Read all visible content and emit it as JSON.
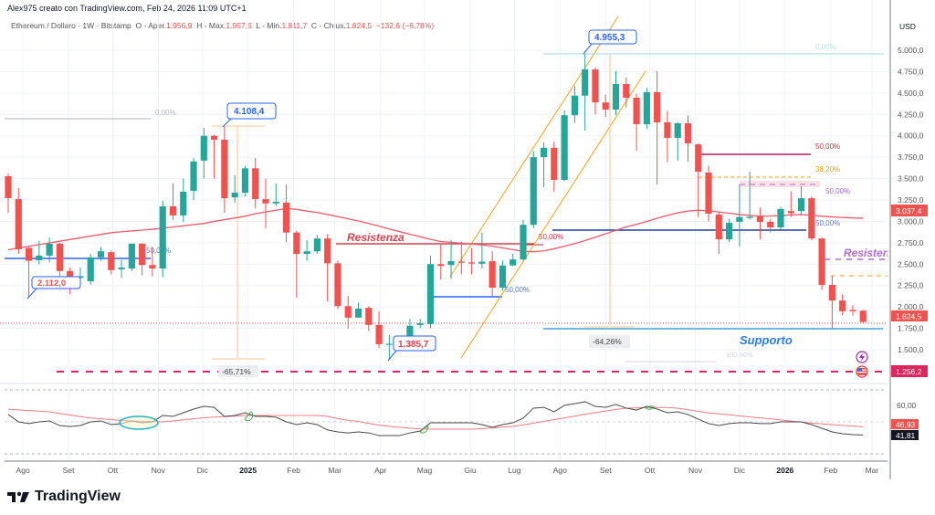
{
  "header": {
    "author_line": "Alex975 creato con TradingView.com, Feb 24, 2026 11:09 UTC+1"
  },
  "legend": {
    "symbol": "Ethereum / Dollaro · 1W · Bitstamp",
    "open_label": "O - Aper.",
    "open": "1.956,9",
    "high_label": "H - Max.",
    "high": "1.957,6",
    "low_label": "L - Min.",
    "low": "1.811,7",
    "close_label": "C - Chius.",
    "close": "1.824,5",
    "change": "−132,6 (−6,78%)"
  },
  "price_axis": {
    "currency": "USD",
    "ticks": [
      "5.000,0",
      "4.750,0",
      "4.500,0",
      "4.250,0",
      "4.000,0",
      "3.750,0",
      "3.500,0",
      "3.250,0",
      "3.000,0",
      "2.750,0",
      "2.500,0",
      "2.250,0",
      "2.000,0",
      "1.750,0",
      "1.500,0"
    ],
    "tick_values": [
      5000,
      4750,
      4500,
      4250,
      4000,
      3750,
      3500,
      3250,
      3000,
      2750,
      2500,
      2250,
      2000,
      1750,
      1500
    ],
    "badges": {
      "ma": "3.037,4",
      "last": "1.824,5",
      "level": "1.256,2"
    }
  },
  "rsi_axis": {
    "tick": "60,00",
    "ma_badge": "46,93",
    "rsi_badge": "41,81"
  },
  "time_axis": [
    {
      "label": "Ago",
      "date": "2024-08-01"
    },
    {
      "label": "Set",
      "date": "2024-09-01"
    },
    {
      "label": "Ott",
      "date": "2024-10-01"
    },
    {
      "label": "Nov",
      "date": "2024-11-01"
    },
    {
      "label": "Dic",
      "date": "2024-12-01"
    },
    {
      "label": "2025",
      "date": "2025-01-01",
      "bold": true
    },
    {
      "label": "Feb",
      "date": "2025-02-01"
    },
    {
      "label": "Mar",
      "date": "2025-03-01"
    },
    {
      "label": "Apr",
      "date": "2025-04-01"
    },
    {
      "label": "Mag",
      "date": "2025-05-01"
    },
    {
      "label": "Giu",
      "date": "2025-06-01"
    },
    {
      "label": "Lug",
      "date": "2025-07-01"
    },
    {
      "label": "Ago",
      "date": "2025-08-01"
    },
    {
      "label": "Set",
      "date": "2025-09-01"
    },
    {
      "label": "Ott",
      "date": "2025-10-01"
    },
    {
      "label": "Nov",
      "date": "2025-11-01"
    },
    {
      "label": "Dic",
      "date": "2025-12-01"
    },
    {
      "label": "2026",
      "date": "2026-01-01",
      "bold": true
    },
    {
      "label": "Feb",
      "date": "2026-02-01"
    },
    {
      "label": "Mar",
      "date": "2026-03-01"
    }
  ],
  "annotations": {
    "fib_left_0": "0,00%",
    "fib_left_50": "50,00%",
    "callout_low_1": "2.112,0",
    "callout_high_1": "4.108,4",
    "drop_1": "-65,71%",
    "resistance_1": "Resistenza",
    "callout_low_2": "1.385,7",
    "fib_mid_50_blue": "50,00%",
    "fib_mid_50_red": "50,00%",
    "callout_high_2": "4.955,3",
    "fib_right_0": "0,00%",
    "drop_2": "-64,26%",
    "fib_right_50_red": "50,00%",
    "fib_right_382": "38,20%",
    "fib_right_50_purple": "50,00%",
    "fib_right_50_blue": "50,00%",
    "resistance_2": "Resistenza",
    "support": "Supporto",
    "fib_right_100": "100,00%"
  },
  "icons": {
    "lightning": "lightning-icon",
    "flag": "us-flag-icon"
  },
  "colors": {
    "up": "#26a69a",
    "down": "#ef5350",
    "ma": "#f05a6a",
    "rsi": "#4a4a4a",
    "rsi_ma": "#f07c84",
    "support": "#2196f3",
    "level": "#e91e63",
    "channel": "#f7a21b"
  },
  "footer": {
    "brand": "TradingView"
  },
  "chart_data": {
    "type": "candlestick",
    "title": "Ethereum / Dollaro · 1W · Bitstamp",
    "ylim": [
      1250,
      5150
    ],
    "columns": [
      "date",
      "open",
      "high",
      "low",
      "close"
    ],
    "candles": [
      [
        "2024-07-22",
        3528,
        3560,
        3100,
        3272
      ],
      [
        "2024-07-29",
        3260,
        3390,
        2620,
        2674
      ],
      [
        "2024-08-05",
        2690,
        2700,
        2112,
        2540
      ],
      [
        "2024-08-12",
        2546,
        2770,
        2500,
        2600
      ],
      [
        "2024-08-19",
        2600,
        2810,
        2520,
        2738
      ],
      [
        "2024-08-26",
        2740,
        2750,
        2240,
        2420
      ],
      [
        "2024-09-02",
        2420,
        2460,
        2150,
        2300
      ],
      [
        "2024-09-09",
        2340,
        2460,
        2290,
        2360
      ],
      [
        "2024-09-16",
        2300,
        2620,
        2260,
        2580
      ],
      [
        "2024-09-23",
        2580,
        2700,
        2540,
        2650
      ],
      [
        "2024-09-30",
        2640,
        2660,
        2380,
        2430
      ],
      [
        "2024-10-07",
        2440,
        2550,
        2340,
        2460
      ],
      [
        "2024-10-14",
        2450,
        2740,
        2420,
        2740
      ],
      [
        "2024-10-21",
        2740,
        2745,
        2370,
        2490
      ],
      [
        "2024-10-28",
        2490,
        2700,
        2360,
        2450
      ],
      [
        "2024-11-04",
        2450,
        3240,
        2350,
        3175
      ],
      [
        "2024-11-11",
        3175,
        3440,
        3020,
        3070
      ],
      [
        "2024-11-18",
        3070,
        3500,
        2990,
        3346
      ],
      [
        "2024-11-25",
        3357,
        3740,
        3250,
        3700
      ],
      [
        "2024-12-02",
        3710,
        4093,
        3500,
        4000
      ],
      [
        "2024-12-09",
        4000,
        4010,
        3500,
        3955
      ],
      [
        "2024-12-16",
        3955,
        4108.4,
        3100,
        3270
      ],
      [
        "2024-12-23",
        3280,
        3540,
        3220,
        3335
      ],
      [
        "2024-12-30",
        3335,
        3650,
        3290,
        3620
      ],
      [
        "2025-01-06",
        3620,
        3740,
        3150,
        3260
      ],
      [
        "2025-01-13",
        3260,
        3500,
        2920,
        3210
      ],
      [
        "2025-01-20",
        3210,
        3440,
        3180,
        3230
      ],
      [
        "2025-01-27",
        3220,
        3430,
        2760,
        2870
      ],
      [
        "2025-02-03",
        2870,
        2890,
        2110,
        2620
      ],
      [
        "2025-02-10",
        2620,
        2780,
        2540,
        2650
      ],
      [
        "2025-02-17",
        2650,
        2840,
        2620,
        2800
      ],
      [
        "2025-02-24",
        2800,
        2850,
        2065,
        2510
      ],
      [
        "2025-03-03",
        2510,
        2540,
        1975,
        2010
      ],
      [
        "2025-03-10",
        2010,
        2130,
        1745,
        1875
      ],
      [
        "2025-03-17",
        1875,
        2050,
        1875,
        1980
      ],
      [
        "2025-03-24",
        1990,
        2010,
        1720,
        1790
      ],
      [
        "2025-03-31",
        1790,
        1950,
        1520,
        1565
      ],
      [
        "2025-04-07",
        1560,
        1670,
        1385.7,
        1570
      ],
      [
        "2025-04-14",
        1565,
        1640,
        1540,
        1580
      ],
      [
        "2025-04-21",
        1565,
        1860,
        1530,
        1780
      ],
      [
        "2025-04-28",
        1790,
        1860,
        1750,
        1810
      ],
      [
        "2025-05-05",
        1800,
        2600,
        1750,
        2500
      ],
      [
        "2025-05-12",
        2500,
        2740,
        2320,
        2480
      ],
      [
        "2025-05-19",
        2490,
        2780,
        2330,
        2535
      ],
      [
        "2025-05-26",
        2530,
        2760,
        2380,
        2520
      ],
      [
        "2025-06-02",
        2520,
        2690,
        2380,
        2510
      ],
      [
        "2025-06-09",
        2505,
        2870,
        2450,
        2530
      ],
      [
        "2025-06-16",
        2535,
        2650,
        2120,
        2226
      ],
      [
        "2025-06-23",
        2226,
        2540,
        2190,
        2485
      ],
      [
        "2025-06-30",
        2485,
        2620,
        2480,
        2555
      ],
      [
        "2025-07-07",
        2555,
        3020,
        2540,
        2960
      ],
      [
        "2025-07-14",
        2960,
        3820,
        2920,
        3750
      ],
      [
        "2025-07-21",
        3750,
        3920,
        3400,
        3860
      ],
      [
        "2025-07-28",
        3860,
        3930,
        3345,
        3485
      ],
      [
        "2025-08-04",
        3485,
        4300,
        3470,
        4240
      ],
      [
        "2025-08-11",
        4240,
        4580,
        4150,
        4470
      ],
      [
        "2025-08-18",
        4470,
        4955.3,
        4060,
        4775
      ],
      [
        "2025-08-25",
        4775,
        4800,
        4250,
        4390
      ],
      [
        "2025-09-01",
        4390,
        4480,
        4220,
        4306
      ],
      [
        "2025-09-08",
        4306,
        4755,
        4240,
        4605
      ],
      [
        "2025-09-15",
        4605,
        4680,
        4330,
        4445
      ],
      [
        "2025-09-22",
        4445,
        4490,
        3826,
        4135
      ],
      [
        "2025-09-29",
        4135,
        4560,
        4080,
        4510
      ],
      [
        "2025-10-06",
        4510,
        4755,
        3430,
        4157
      ],
      [
        "2025-10-13",
        4157,
        4290,
        3690,
        3975
      ],
      [
        "2025-10-20",
        3975,
        4160,
        3710,
        4146
      ],
      [
        "2025-10-27",
        4146,
        4240,
        3700,
        3912
      ],
      [
        "2025-11-03",
        3900,
        3910,
        3050,
        3580
      ],
      [
        "2025-11-10",
        3570,
        3650,
        3000,
        3090
      ],
      [
        "2025-11-17",
        3080,
        3110,
        2620,
        2790
      ],
      [
        "2025-11-24",
        2790,
        3030,
        2760,
        2983
      ],
      [
        "2025-12-01",
        2995,
        3430,
        2705,
        3050
      ],
      [
        "2025-12-08",
        3040,
        3580,
        3020,
        3055
      ],
      [
        "2025-12-15",
        3060,
        3160,
        2790,
        2995
      ],
      [
        "2025-12-22",
        2995,
        3030,
        2870,
        2930
      ],
      [
        "2025-12-29",
        2930,
        3170,
        2900,
        3145
      ],
      [
        "2026-01-05",
        3120,
        3350,
        3050,
        3095
      ],
      [
        "2026-01-12",
        3120,
        3410,
        3070,
        3270
      ],
      [
        "2026-01-19",
        3270,
        3290,
        2780,
        2800
      ],
      [
        "2026-01-26",
        2800,
        2810,
        2200,
        2258
      ],
      [
        "2026-02-02",
        2258,
        2365,
        1745,
        2075
      ],
      [
        "2026-02-09",
        2075,
        2150,
        1900,
        1950
      ],
      [
        "2026-02-16",
        1965,
        2020,
        1900,
        1950
      ],
      [
        "2026-02-23",
        1956.9,
        1957.6,
        1811.7,
        1824.5
      ]
    ],
    "moving_average": [
      2669,
      2689,
      2709,
      2729,
      2749,
      2768,
      2788,
      2808,
      2828,
      2848,
      2868,
      2878,
      2888,
      2898,
      2908,
      2920,
      2934,
      2948,
      2962,
      2976,
      3000,
      3020,
      3040,
      3060,
      3090,
      3110,
      3130,
      3150,
      3140,
      3120,
      3105,
      3080,
      3055,
      3030,
      3005,
      2975,
      2945,
      2910,
      2880,
      2850,
      2820,
      2790,
      2765,
      2755,
      2745,
      2735,
      2725,
      2710,
      2690,
      2670,
      2650,
      2645,
      2655,
      2680,
      2710,
      2740,
      2775,
      2815,
      2855,
      2895,
      2935,
      2965,
      3000,
      3035,
      3070,
      3100,
      3120,
      3130,
      3125,
      3110,
      3095,
      3080,
      3070,
      3060,
      3062,
      3068,
      3075,
      3080,
      3070,
      3060,
      3052,
      3046,
      3040,
      3037.4
    ],
    "rsi": {
      "levels": [
        70,
        50,
        30
      ],
      "values": [
        54.6,
        50,
        48.9,
        50,
        50.6,
        47.7,
        47.1,
        47.7,
        50,
        50.6,
        48.3,
        48.9,
        50.6,
        49.4,
        50,
        54,
        53.4,
        55.7,
        58,
        59.7,
        59.1,
        53.4,
        54,
        55.7,
        53.4,
        53.4,
        52.9,
        50,
        48.3,
        49.4,
        48.3,
        44.9,
        43.7,
        43.1,
        43.7,
        43.1,
        41.4,
        41.4,
        41.4,
        43.1,
        44.3,
        49.4,
        49.4,
        49.4,
        49.4,
        49.4,
        48.3,
        46.6,
        48.3,
        49.4,
        52.3,
        58.6,
        59.1,
        56.3,
        60.3,
        61.4,
        62.6,
        59.7,
        59.1,
        60.9,
        58.6,
        57.4,
        59.7,
        58,
        55.7,
        56.3,
        54.6,
        51.7,
        48.9,
        47.7,
        48.9,
        49.4,
        49.4,
        48.9,
        48.9,
        50,
        50,
        50,
        48.3,
        46,
        43.7,
        42.6,
        42,
        41.81
      ],
      "ma": [
        57.9,
        57.5,
        57.1,
        56.7,
        56.3,
        55.3,
        54.3,
        53.3,
        52.4,
        51.9,
        51.4,
        50.9,
        50.6,
        50.4,
        50.2,
        50,
        50.6,
        51.3,
        51.9,
        52.6,
        53,
        53.3,
        53.6,
        54,
        54,
        54,
        54,
        54,
        54,
        54,
        54,
        53.5,
        52,
        51,
        50.2,
        49.1,
        48,
        47.2,
        46.6,
        46.1,
        45.6,
        45.4,
        45.4,
        45.4,
        45.4,
        45.4,
        45.8,
        46.3,
        46.7,
        47.2,
        48.1,
        49.2,
        50.3,
        51.4,
        52.5,
        53.6,
        54.8,
        55.8,
        56.8,
        57.8,
        58.6,
        58.8,
        59,
        59.1,
        58.9,
        58.6,
        57.6,
        56.6,
        55.6,
        55,
        54.4,
        53.7,
        53.1,
        52.5,
        51.9,
        51.2,
        50.5,
        49.9,
        49.2,
        48.8,
        48.3,
        47.8,
        47.4,
        46.93
      ]
    }
  }
}
